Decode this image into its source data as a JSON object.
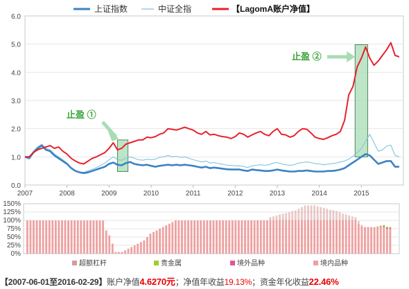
{
  "colors": {
    "sh_index": "#3a82c4",
    "zz_index": "#7fc3df",
    "nav": "#e8202a",
    "box_fill": "#a8dcb4",
    "box_stroke": "#4a8a5a",
    "annot": "#3aa53a",
    "bar_lev": "#d89a9a",
    "bar_metal": "#9bcf2e",
    "bar_overseas": "#e0559a",
    "bar_domestic": "#eea0a0"
  },
  "chart_data": [
    {
      "type": "line",
      "xlim": [
        2007.0,
        2016.0
      ],
      "ylim": [
        0,
        6
      ],
      "y_ticks": [
        "0.0",
        "1.0",
        "2.0",
        "3.0",
        "4.0",
        "5.0",
        "6.0"
      ],
      "x_ticks": [
        "2007",
        "2008",
        "2009",
        "2010",
        "2011",
        "2012",
        "2013",
        "2014",
        "2015"
      ],
      "legend": [
        "上证指数",
        "中证全指",
        "【LagomA账户净值】"
      ],
      "x": [
        2007.0,
        2007.1,
        2007.2,
        2007.3,
        2007.4,
        2007.5,
        2007.6,
        2007.7,
        2007.8,
        2007.9,
        2008.0,
        2008.1,
        2008.2,
        2008.3,
        2008.4,
        2008.5,
        2008.6,
        2008.7,
        2008.8,
        2008.9,
        2009.0,
        2009.1,
        2009.2,
        2009.3,
        2009.4,
        2009.5,
        2009.6,
        2009.7,
        2009.8,
        2009.9,
        2010.0,
        2010.1,
        2010.2,
        2010.3,
        2010.4,
        2010.5,
        2010.6,
        2010.7,
        2010.8,
        2010.9,
        2011.0,
        2011.1,
        2011.2,
        2011.3,
        2011.4,
        2011.5,
        2011.6,
        2011.7,
        2011.8,
        2011.9,
        2012.0,
        2012.1,
        2012.2,
        2012.3,
        2012.4,
        2012.5,
        2012.6,
        2012.7,
        2012.8,
        2012.9,
        2013.0,
        2013.1,
        2013.2,
        2013.3,
        2013.4,
        2013.5,
        2013.6,
        2013.7,
        2013.8,
        2013.9,
        2014.0,
        2014.1,
        2014.2,
        2014.3,
        2014.4,
        2014.5,
        2014.6,
        2014.7,
        2014.8,
        2014.9,
        2015.0,
        2015.1,
        2015.2,
        2015.3,
        2015.4,
        2015.5,
        2015.6,
        2015.7,
        2015.8,
        2015.9
      ],
      "series": [
        {
          "name": "上证指数",
          "values": [
            1.0,
            0.95,
            1.15,
            1.3,
            1.4,
            1.25,
            1.2,
            1.05,
            0.95,
            0.85,
            0.75,
            0.6,
            0.5,
            0.45,
            0.42,
            0.45,
            0.5,
            0.55,
            0.6,
            0.65,
            0.75,
            0.8,
            0.72,
            0.7,
            0.78,
            0.82,
            0.75,
            0.72,
            0.7,
            0.72,
            0.68,
            0.65,
            0.68,
            0.7,
            0.72,
            0.7,
            0.72,
            0.7,
            0.72,
            0.7,
            0.68,
            0.65,
            0.62,
            0.65,
            0.6,
            0.62,
            0.6,
            0.58,
            0.56,
            0.55,
            0.55,
            0.55,
            0.52,
            0.5,
            0.55,
            0.53,
            0.52,
            0.5,
            0.5,
            0.52,
            0.55,
            0.52,
            0.5,
            0.48,
            0.48,
            0.5,
            0.5,
            0.52,
            0.5,
            0.48,
            0.48,
            0.48,
            0.5,
            0.5,
            0.52,
            0.55,
            0.6,
            0.7,
            0.8,
            0.9,
            1.0,
            1.1,
            1.05,
            0.9,
            0.75,
            0.8,
            0.85,
            0.85,
            0.65,
            0.65
          ]
        },
        {
          "name": "中证全指",
          "values": [
            1.0,
            0.98,
            1.2,
            1.35,
            1.45,
            1.3,
            1.25,
            1.1,
            1.0,
            0.9,
            0.78,
            0.62,
            0.5,
            0.46,
            0.45,
            0.5,
            0.56,
            0.62,
            0.7,
            0.78,
            0.9,
            1.0,
            0.9,
            0.88,
            0.95,
            1.0,
            0.95,
            0.9,
            0.88,
            0.92,
            0.9,
            0.92,
            0.98,
            1.0,
            1.05,
            1.0,
            1.02,
            0.98,
            1.0,
            0.95,
            0.9,
            0.86,
            0.82,
            0.85,
            0.78,
            0.8,
            0.76,
            0.74,
            0.7,
            0.7,
            0.68,
            0.68,
            0.66,
            0.62,
            0.68,
            0.7,
            0.72,
            0.7,
            0.72,
            0.78,
            0.8,
            0.75,
            0.72,
            0.7,
            0.72,
            0.78,
            0.8,
            0.82,
            0.8,
            0.76,
            0.75,
            0.72,
            0.74,
            0.76,
            0.78,
            0.82,
            0.85,
            0.92,
            1.02,
            1.15,
            1.3,
            1.55,
            1.8,
            1.5,
            1.2,
            1.25,
            1.38,
            1.42,
            1.05,
            1.0
          ]
        },
        {
          "name": "【LagomA账户净值】",
          "values": [
            1.0,
            1.0,
            1.15,
            1.25,
            1.3,
            1.35,
            1.4,
            1.3,
            1.35,
            1.2,
            1.1,
            0.95,
            0.85,
            0.78,
            0.75,
            0.85,
            0.95,
            1.0,
            1.08,
            1.15,
            1.3,
            1.5,
            1.25,
            1.3,
            1.45,
            1.5,
            1.55,
            1.6,
            1.6,
            1.7,
            1.68,
            1.72,
            1.8,
            1.85,
            2.0,
            1.98,
            1.95,
            2.0,
            2.05,
            2.0,
            1.95,
            1.85,
            1.8,
            1.9,
            1.78,
            1.8,
            1.75,
            1.72,
            1.7,
            1.65,
            1.72,
            1.85,
            1.8,
            1.7,
            1.78,
            1.85,
            1.9,
            1.8,
            1.75,
            1.9,
            2.0,
            1.8,
            1.78,
            1.7,
            1.75,
            1.9,
            2.0,
            1.98,
            1.85,
            1.7,
            1.65,
            1.62,
            1.68,
            1.75,
            1.8,
            1.9,
            2.3,
            3.2,
            3.5,
            4.2,
            4.5,
            4.9,
            4.5,
            4.25,
            4.4,
            4.6,
            4.8,
            5.05,
            4.6,
            4.55
          ]
        }
      ],
      "annotations": [
        {
          "text": "止盈 ①",
          "x_range": [
            2009.2,
            2009.45
          ],
          "y_range": [
            0.48,
            1.6
          ]
        },
        {
          "text": "止盈 ②",
          "x_range": [
            2014.85,
            2015.15
          ],
          "y_range": [
            1.0,
            4.98
          ]
        }
      ]
    },
    {
      "type": "bar",
      "stacked": true,
      "ylim": [
        0,
        150
      ],
      "y_ticks": [
        "0%",
        "25%",
        "50%",
        "75%",
        "100%",
        "125%",
        "150%"
      ],
      "legend": [
        "超额杠杆",
        "贵金属",
        "境外品种",
        "境内品种"
      ],
      "series": [
        {
          "name": "境内品种",
          "values": [
            100,
            100,
            100,
            100,
            100,
            100,
            100,
            100,
            100,
            100,
            100,
            100,
            100,
            100,
            100,
            100,
            100,
            100,
            100,
            100,
            100,
            100,
            100,
            100,
            100,
            70,
            55,
            30,
            5,
            5,
            5,
            10,
            15,
            20,
            25,
            30,
            35,
            40,
            50,
            60,
            65,
            70,
            75,
            80,
            85,
            90,
            95,
            100,
            100,
            100,
            100,
            100,
            100,
            100,
            100,
            100,
            100,
            100,
            100,
            100,
            100,
            100,
            100,
            100,
            100,
            100,
            100,
            100,
            100,
            100,
            100,
            100,
            100,
            100,
            100,
            100,
            100,
            100,
            100,
            100,
            100,
            100,
            100,
            100,
            100,
            100,
            100,
            100,
            100,
            100,
            100,
            100,
            100,
            100,
            100,
            100,
            100,
            100,
            100,
            100,
            100,
            100,
            100,
            100,
            100,
            90,
            82,
            80,
            80,
            80,
            80,
            80,
            80,
            80,
            75,
            75
          ]
        },
        {
          "name": "境外品种",
          "values": [
            0,
            0,
            0,
            0,
            0,
            0,
            0,
            0,
            0,
            0,
            0,
            0,
            0,
            0,
            0,
            0,
            0,
            0,
            0,
            0,
            0,
            0,
            0,
            0,
            0,
            0,
            0,
            0,
            0,
            0,
            0,
            0,
            0,
            0,
            0,
            0,
            0,
            0,
            0,
            0,
            0,
            0,
            0,
            0,
            0,
            0,
            0,
            0,
            0,
            0,
            0,
            0,
            0,
            0,
            0,
            0,
            0,
            0,
            0,
            0,
            0,
            0,
            0,
            0,
            0,
            0,
            0,
            0,
            0,
            0,
            0,
            0,
            0,
            0,
            0,
            0,
            0,
            0,
            0,
            0,
            0,
            0,
            0,
            0,
            0,
            0,
            0,
            0,
            0,
            0,
            0,
            0,
            0,
            0,
            0,
            0,
            0,
            0,
            0,
            0,
            0,
            0,
            0,
            0,
            0,
            0,
            0,
            0,
            0,
            0,
            0,
            0,
            2,
            3,
            3,
            2
          ]
        },
        {
          "name": "贵金属",
          "values": [
            0,
            0,
            0,
            0,
            0,
            0,
            0,
            0,
            0,
            0,
            0,
            0,
            0,
            0,
            0,
            0,
            0,
            0,
            0,
            0,
            0,
            0,
            0,
            0,
            0,
            0,
            0,
            0,
            0,
            0,
            0,
            0,
            0,
            0,
            0,
            0,
            0,
            0,
            0,
            0,
            0,
            0,
            0,
            0,
            0,
            0,
            0,
            0,
            0,
            0,
            0,
            0,
            0,
            0,
            0,
            0,
            0,
            0,
            0,
            0,
            0,
            0,
            0,
            0,
            0,
            0,
            0,
            0,
            0,
            0,
            0,
            0,
            0,
            0,
            0,
            0,
            0,
            0,
            0,
            0,
            0,
            0,
            0,
            0,
            0,
            0,
            0,
            0,
            0,
            0,
            0,
            0,
            0,
            0,
            0,
            0,
            0,
            0,
            0,
            0,
            0,
            0,
            0,
            0,
            0,
            0,
            0,
            0,
            0,
            0,
            0,
            2,
            2,
            3,
            3,
            3
          ]
        },
        {
          "name": "超额杠杆",
          "values": [
            0,
            0,
            0,
            0,
            0,
            0,
            0,
            0,
            0,
            0,
            0,
            0,
            0,
            0,
            0,
            0,
            0,
            0,
            0,
            0,
            0,
            0,
            0,
            0,
            0,
            0,
            0,
            0,
            0,
            0,
            0,
            0,
            0,
            0,
            0,
            0,
            0,
            0,
            0,
            0,
            0,
            0,
            0,
            0,
            0,
            0,
            0,
            0,
            0,
            0,
            0,
            0,
            0,
            0,
            0,
            0,
            0,
            0,
            0,
            0,
            0,
            0,
            0,
            0,
            0,
            0,
            0,
            0,
            0,
            0,
            0,
            0,
            0,
            0,
            0,
            0,
            0,
            10,
            12,
            15,
            18,
            20,
            22,
            25,
            28,
            30,
            35,
            40,
            45,
            45,
            45,
            45,
            42,
            40,
            38,
            35,
            32,
            30,
            28,
            25,
            20,
            18,
            15,
            12,
            10,
            8,
            5,
            0,
            0,
            0,
            0,
            0,
            0,
            0,
            0,
            0
          ]
        }
      ]
    }
  ],
  "summary": {
    "period": "【2007-06-01至2016-02-29】",
    "nav_label": "账户净值",
    "nav_value": "4.6270元",
    "nav_return_label": "；净值年收益",
    "nav_return": "19.13%",
    "asset_return_label": "；资金年化收益",
    "asset_return": "22.46%"
  }
}
